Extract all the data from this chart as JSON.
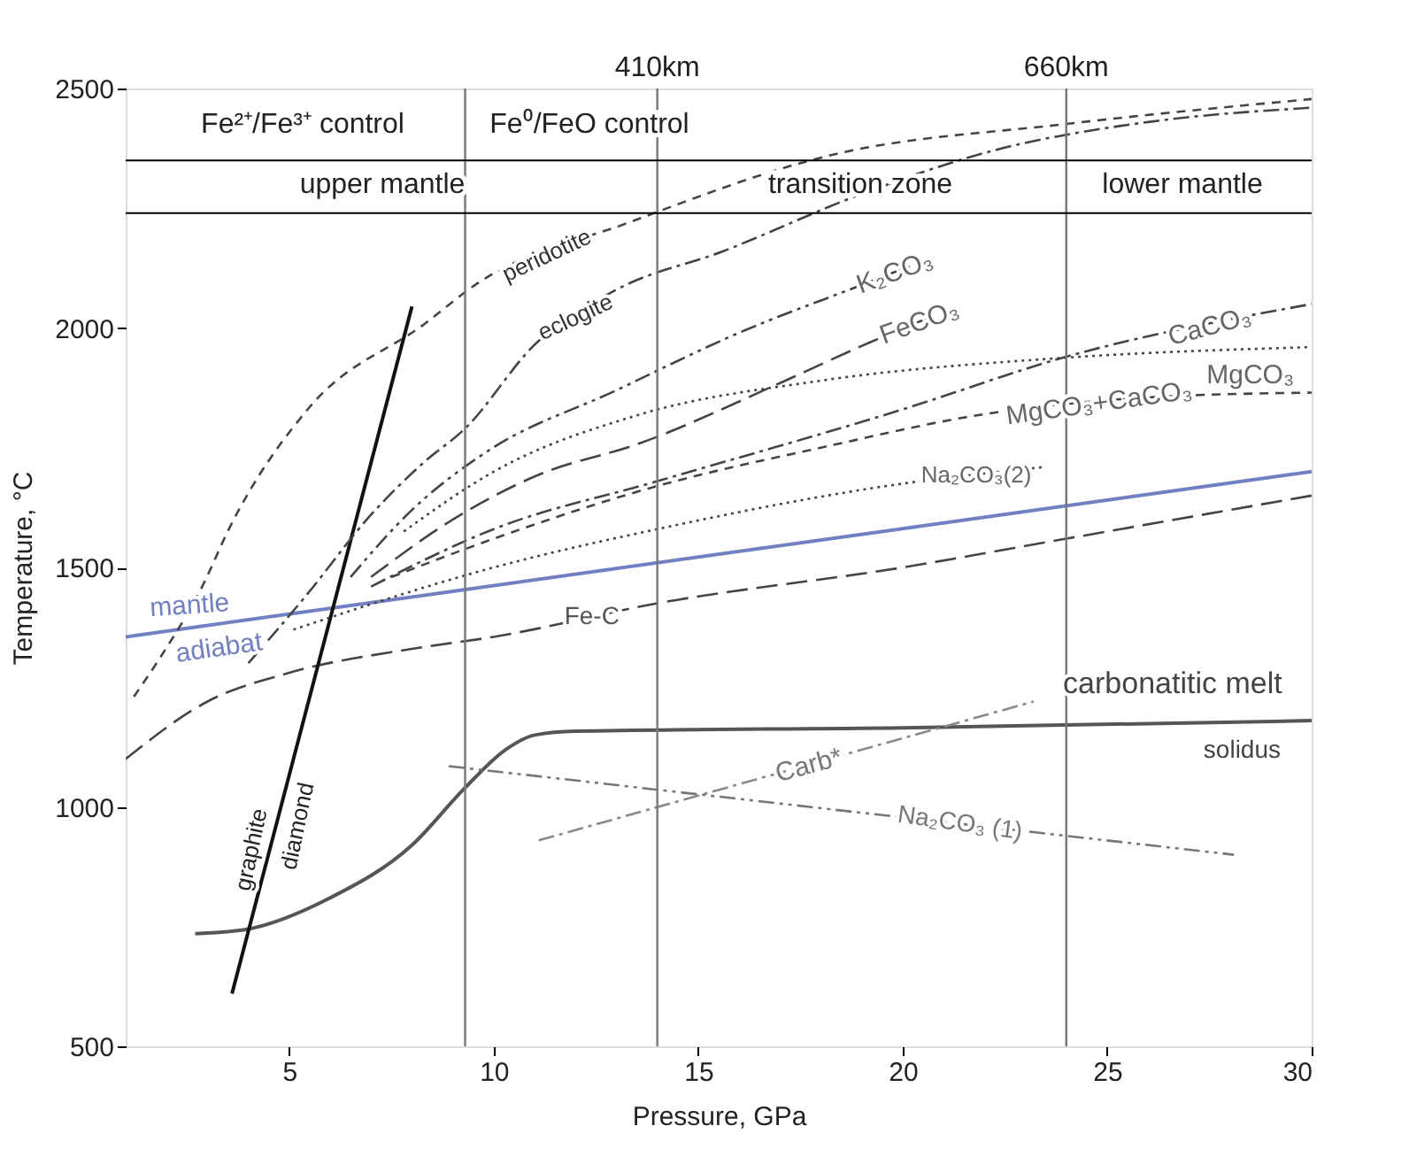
{
  "chart_data": {
    "type": "line",
    "xlabel": "Pressure, GPa",
    "ylabel": "Temperature, °C",
    "xlim": [
      1,
      30
    ],
    "ylim": [
      500,
      2500
    ],
    "xticks": [
      5,
      10,
      15,
      20,
      25,
      30
    ],
    "yticks": [
      500,
      1000,
      1500,
      2000,
      2500
    ],
    "grid": false,
    "series": [
      {
        "color": "#7080c0",
        "line_style": "solid",
        "x": [
          1,
          30
        ],
        "values": [
          1355,
          1700
        ]
      },
      {
        "color": "#444444",
        "line_style": "longdash",
        "x": [
          1,
          3,
          5,
          8,
          10,
          14,
          20,
          24,
          30
        ],
        "values": [
          1100,
          1220,
          1280,
          1330,
          1355,
          1425,
          1500,
          1560,
          1650
        ]
      },
      {
        "color": "#555555",
        "line_style": "solid",
        "x": [
          2.7,
          4,
          6,
          8,
          9.3,
          10.3,
          11,
          12,
          20,
          30
        ],
        "values": [
          735,
          745,
          810,
          920,
          1040,
          1120,
          1150,
          1158,
          1165,
          1180
        ]
      },
      {
        "color": "#111111",
        "line_style": "solid",
        "x": [
          3.6,
          8
        ],
        "values": [
          610,
          2045
        ]
      },
      {
        "color": "#888888",
        "line_style": "dashdot",
        "x": [
          11.1,
          23.2
        ],
        "values": [
          930,
          1220
        ]
      },
      {
        "color": "#777777",
        "line_style": "dashdotdot",
        "x": [
          8.9,
          28.1
        ],
        "values": [
          1085,
          900
        ]
      },
      {
        "color": "#444444",
        "line_style": "dotted",
        "x": [
          5.1,
          10,
          14,
          20,
          23.5
        ],
        "values": [
          1370,
          1500,
          1580,
          1675,
          1710
        ]
      },
      {
        "color": "#444444",
        "line_style": "dashed",
        "x": [
          7.5,
          10,
          14,
          18,
          22,
          26,
          30
        ],
        "values": [
          1480,
          1560,
          1670,
          1750,
          1820,
          1855,
          1865
        ]
      },
      {
        "color": "#444444",
        "line_style": "dashdot",
        "x": [
          7,
          10,
          14,
          20,
          24,
          30
        ],
        "values": [
          1460,
          1580,
          1680,
          1830,
          1940,
          2050
        ]
      },
      {
        "color": "#444444",
        "line_style": "dotted",
        "x": [
          7.8,
          10,
          13.6,
          18,
          24,
          30
        ],
        "values": [
          1575,
          1700,
          1820,
          1890,
          1938,
          1960
        ]
      },
      {
        "color": "#444444",
        "line_style": "longdash",
        "x": [
          7,
          9,
          11,
          13.6,
          17,
          19.2,
          20.6
        ],
        "values": [
          1480,
          1600,
          1690,
          1760,
          1885,
          1970,
          2020
        ]
      },
      {
        "color": "#444444",
        "line_style": "dashdotdot",
        "x": [
          6.5,
          8,
          9.8,
          13,
          16,
          19,
          20.2
        ],
        "values": [
          1480,
          1620,
          1740,
          1870,
          1990,
          2090,
          2130
        ]
      },
      {
        "color": "#444444",
        "line_style": "dashdot",
        "x": [
          4,
          5.4,
          7,
          8.3,
          9.3,
          11,
          13,
          15.6,
          19,
          22.2,
          26,
          30
        ],
        "values": [
          1300,
          1440,
          1610,
          1720,
          1790,
          1965,
          2080,
          2160,
          2280,
          2370,
          2430,
          2460
        ]
      },
      {
        "color": "#444444",
        "line_style": "dashed",
        "x": [
          1.2,
          1.8,
          2.9,
          3.5,
          5.5,
          8.3,
          9.6,
          13.3,
          18.2,
          24,
          30
        ],
        "values": [
          1230,
          1306,
          1465,
          1576,
          1835,
          2008,
          2093,
          2220,
          2360,
          2426,
          2478
        ]
      }
    ],
    "ref_lines": [
      {
        "axis": "x",
        "value": 9.3,
        "label": null,
        "color": "#777777"
      },
      {
        "axis": "x",
        "value": 14,
        "label": "410km",
        "color": "#777777"
      },
      {
        "axis": "x",
        "value": 24,
        "label": "660km",
        "color": "#777777"
      },
      {
        "axis": "y",
        "value": 2350,
        "label": null,
        "color": "#000000"
      },
      {
        "axis": "y",
        "value": 2240,
        "label": null,
        "color": "#000000"
      }
    ],
    "annotations": [
      "Fe²⁺/Fe³⁺ control",
      "Fe⁰/FeO control",
      "upper mantle",
      "transition zone",
      "lower mantle",
      {
        "text": "peridotite",
        "x": 11.3,
        "y": 2151
      },
      {
        "text": "eclogite",
        "x": 12,
        "y": 2022
      },
      {
        "text": "K₂CO₃",
        "x": 19.8,
        "y": 2117
      },
      {
        "text": "FeCO₃",
        "x": 20.4,
        "y": 2013
      },
      {
        "text": "CaCO₃",
        "x": 27.5,
        "y": 2004
      },
      {
        "text": "MgCO₃",
        "x": 28.5,
        "y": 1954
      },
      {
        "text": "MgCO₃+CaCO₃",
        "x": 24.8,
        "y": 1844
      },
      {
        "text": "Na₂CO₃(2)",
        "x": 21.8,
        "y": 1693
      },
      {
        "text": "mantle",
        "x": 2.6,
        "y": 1374
      },
      {
        "text": "adiabat",
        "x": 3.2,
        "y": 1381
      },
      {
        "text": "Fe-C",
        "x": 12.4,
        "y": 1397
      },
      {
        "text": "graphite",
        "x": 4.5,
        "y": 903
      },
      {
        "text": "diamond",
        "x": 4.7,
        "y": 969
      },
      {
        "text": "carbonatitic melt",
        "x": 26.6,
        "y": 1174
      },
      {
        "text": "solidus",
        "x": 28.3,
        "y": 1177
      },
      {
        "text": "Carb*",
        "x": 17.7,
        "y": 1088
      },
      {
        "text": "Na₂CO₃ (1)",
        "x": 21.4,
        "y": 965
      }
    ]
  }
}
